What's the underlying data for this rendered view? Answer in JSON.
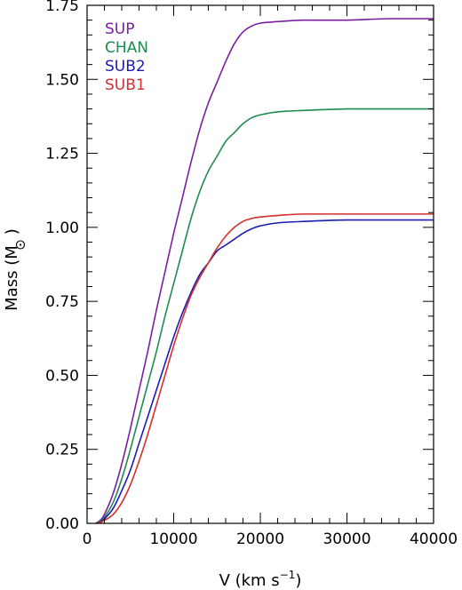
{
  "chart_data": {
    "type": "line",
    "xlabel": "V (km s",
    "xlabel_sup": "−1",
    "xlabel_end": ")",
    "ylabel": "Mass (M",
    "ylabel_end": ")",
    "ylabel_symbol": "sun-symbol",
    "xlim": [
      0,
      40000
    ],
    "ylim": [
      0,
      1.75
    ],
    "x_ticks": [
      0,
      10000,
      20000,
      30000,
      40000
    ],
    "x_tick_labels": [
      "0",
      "10000",
      "20000",
      "30000",
      "40000"
    ],
    "y_ticks": [
      0,
      0.25,
      0.5,
      0.75,
      1.0,
      1.25,
      1.5,
      1.75
    ],
    "y_tick_labels": [
      "0.00",
      "0.25",
      "0.50",
      "0.75",
      "1.00",
      "1.25",
      "1.50",
      "1.75"
    ],
    "grid": false,
    "legend_position": "top-left",
    "series": [
      {
        "name": "SUP",
        "color": "#7b1fa2",
        "x": [
          1000,
          1500,
          2000,
          3000,
          4000,
          5000,
          6000,
          7000,
          8000,
          9000,
          10000,
          11000,
          12000,
          13000,
          14000,
          15000,
          16000,
          17000,
          18000,
          19000,
          20000,
          22000,
          25000,
          30000,
          35000,
          40000
        ],
        "y": [
          0.0,
          0.01,
          0.03,
          0.1,
          0.2,
          0.32,
          0.45,
          0.58,
          0.72,
          0.85,
          0.98,
          1.1,
          1.22,
          1.33,
          1.42,
          1.49,
          1.56,
          1.62,
          1.66,
          1.68,
          1.69,
          1.695,
          1.7,
          1.7,
          1.705,
          1.705
        ]
      },
      {
        "name": "CHAN",
        "color": "#1e8c4e",
        "x": [
          1000,
          1500,
          2000,
          3000,
          4000,
          5000,
          6000,
          7000,
          8000,
          9000,
          10000,
          11000,
          12000,
          13000,
          14000,
          15000,
          16000,
          17000,
          18000,
          19000,
          20000,
          22000,
          25000,
          30000,
          35000,
          40000
        ],
        "y": [
          0.0,
          0.008,
          0.02,
          0.07,
          0.15,
          0.25,
          0.36,
          0.47,
          0.58,
          0.7,
          0.81,
          0.92,
          1.03,
          1.12,
          1.19,
          1.24,
          1.29,
          1.32,
          1.35,
          1.37,
          1.38,
          1.39,
          1.395,
          1.4,
          1.4,
          1.4
        ]
      },
      {
        "name": "SUB2",
        "color": "#1c1cb0",
        "x": [
          1000,
          1500,
          2000,
          3000,
          4000,
          5000,
          6000,
          7000,
          8000,
          9000,
          10000,
          11000,
          12000,
          13000,
          14000,
          15000,
          16000,
          17000,
          18000,
          19000,
          20000,
          22000,
          25000,
          30000,
          35000,
          40000
        ],
        "y": [
          0.0,
          0.005,
          0.015,
          0.05,
          0.11,
          0.18,
          0.27,
          0.36,
          0.45,
          0.54,
          0.63,
          0.71,
          0.78,
          0.84,
          0.88,
          0.92,
          0.94,
          0.96,
          0.98,
          0.995,
          1.005,
          1.015,
          1.02,
          1.025,
          1.025,
          1.025
        ]
      },
      {
        "name": "SUB1",
        "color": "#d32f2f",
        "x": [
          1000,
          1500,
          2000,
          3000,
          4000,
          5000,
          6000,
          7000,
          8000,
          9000,
          10000,
          11000,
          12000,
          13000,
          14000,
          15000,
          16000,
          17000,
          18000,
          19000,
          20000,
          22000,
          25000,
          30000,
          35000,
          40000
        ],
        "y": [
          0.0,
          0.003,
          0.01,
          0.03,
          0.07,
          0.13,
          0.21,
          0.3,
          0.4,
          0.5,
          0.6,
          0.69,
          0.77,
          0.83,
          0.88,
          0.93,
          0.97,
          1.0,
          1.02,
          1.03,
          1.035,
          1.04,
          1.045,
          1.045,
          1.045,
          1.045
        ]
      }
    ]
  }
}
